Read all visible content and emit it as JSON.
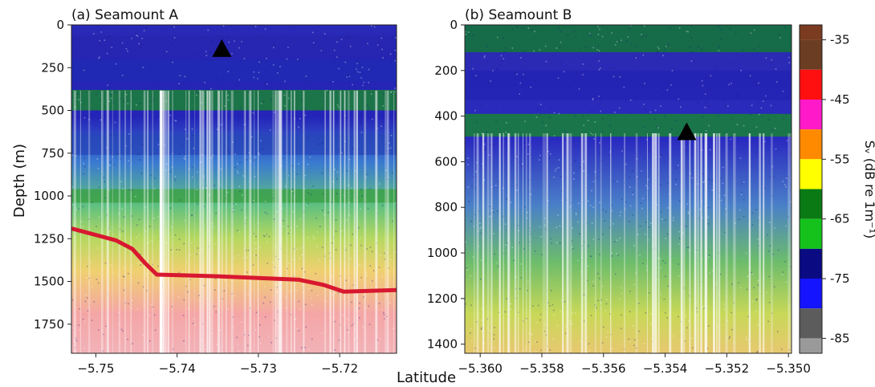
{
  "figure": {
    "xlabel": "Latitude",
    "ylabel": "Depth (m)"
  },
  "chart_data": [
    {
      "type": "heatmap",
      "title": "(a) Seamount A",
      "xlabel": "Latitude",
      "ylabel": "Depth (m)",
      "xlim": [
        -5.753,
        -5.713
      ],
      "ylim": [
        1920,
        0
      ],
      "xticks": [
        -5.75,
        -5.74,
        -5.73,
        -5.72
      ],
      "xticklabels": [
        "−5.75",
        "−5.74",
        "−5.73",
        "−5.72"
      ],
      "yticks": [
        0,
        250,
        500,
        750,
        1000,
        1250,
        1500,
        1750
      ],
      "yticklabels": [
        "0",
        "250",
        "500",
        "750",
        "1000",
        "1250",
        "1500",
        "1750"
      ],
      "scattering_layers_depth_m": [
        [
          0,
          60
        ],
        [
          210,
          330
        ],
        [
          380,
          500
        ],
        [
          640,
          760
        ],
        [
          960,
          1040
        ]
      ],
      "seafloor": {
        "x": [
          -5.753,
          -5.7475,
          -5.7455,
          -5.744,
          -5.7425,
          -5.735,
          -5.725,
          -5.722,
          -5.7195,
          -5.713
        ],
        "depth": [
          1190,
          1260,
          1310,
          1390,
          1460,
          1470,
          1490,
          1520,
          1560,
          1550
        ]
      },
      "marker": {
        "x": -5.7345,
        "depth": 140
      }
    },
    {
      "type": "heatmap",
      "title": "(b) Seamount B",
      "xlabel": "Latitude",
      "ylabel": "",
      "xlim": [
        -5.3605,
        -5.3499
      ],
      "ylim": [
        1440,
        0
      ],
      "xticks": [
        -5.36,
        -5.358,
        -5.356,
        -5.354,
        -5.352,
        -5.35
      ],
      "xticklabels": [
        "−5.360",
        "−5.358",
        "−5.356",
        "−5.354",
        "−5.352",
        "−5.350"
      ],
      "yticks": [
        0,
        200,
        400,
        600,
        800,
        1000,
        1200,
        1400
      ],
      "yticklabels": [
        "0",
        "200",
        "400",
        "600",
        "800",
        "1000",
        "1200",
        "1400"
      ],
      "scattering_layers_depth_m": [
        [
          0,
          120
        ],
        [
          200,
          330
        ],
        [
          390,
          490
        ]
      ],
      "marker": {
        "x": -5.3533,
        "depth": 470
      }
    }
  ],
  "colorbar": {
    "label": "Sᵥ (dB re 1m⁻¹)",
    "range": [
      -87.5,
      -32.5
    ],
    "ticks": [
      -35,
      -45,
      -55,
      -65,
      -75,
      -85
    ],
    "ticklabels": [
      "-35",
      "-45",
      "-55",
      "-65",
      "-75",
      "-85"
    ],
    "bands": [
      {
        "from": -35,
        "to": -32.5,
        "color": "#7b3b20"
      },
      {
        "from": -40,
        "to": -35,
        "color": "#6b3d22"
      },
      {
        "from": -45,
        "to": -40,
        "color": "#ff1010"
      },
      {
        "from": -50,
        "to": -45,
        "color": "#ff19c8"
      },
      {
        "from": -55,
        "to": -50,
        "color": "#ff8a00"
      },
      {
        "from": -60,
        "to": -55,
        "color": "#ffff00"
      },
      {
        "from": -65,
        "to": -60,
        "color": "#0a7a14"
      },
      {
        "from": -70,
        "to": -65,
        "color": "#15c21c"
      },
      {
        "from": -75,
        "to": -70,
        "color": "#0a0a82"
      },
      {
        "from": -80,
        "to": -75,
        "color": "#1414ff"
      },
      {
        "from": -85,
        "to": -80,
        "color": "#5c5c5c"
      },
      {
        "from": -87.5,
        "to": -85,
        "color": "#9a9a9a"
      }
    ]
  }
}
